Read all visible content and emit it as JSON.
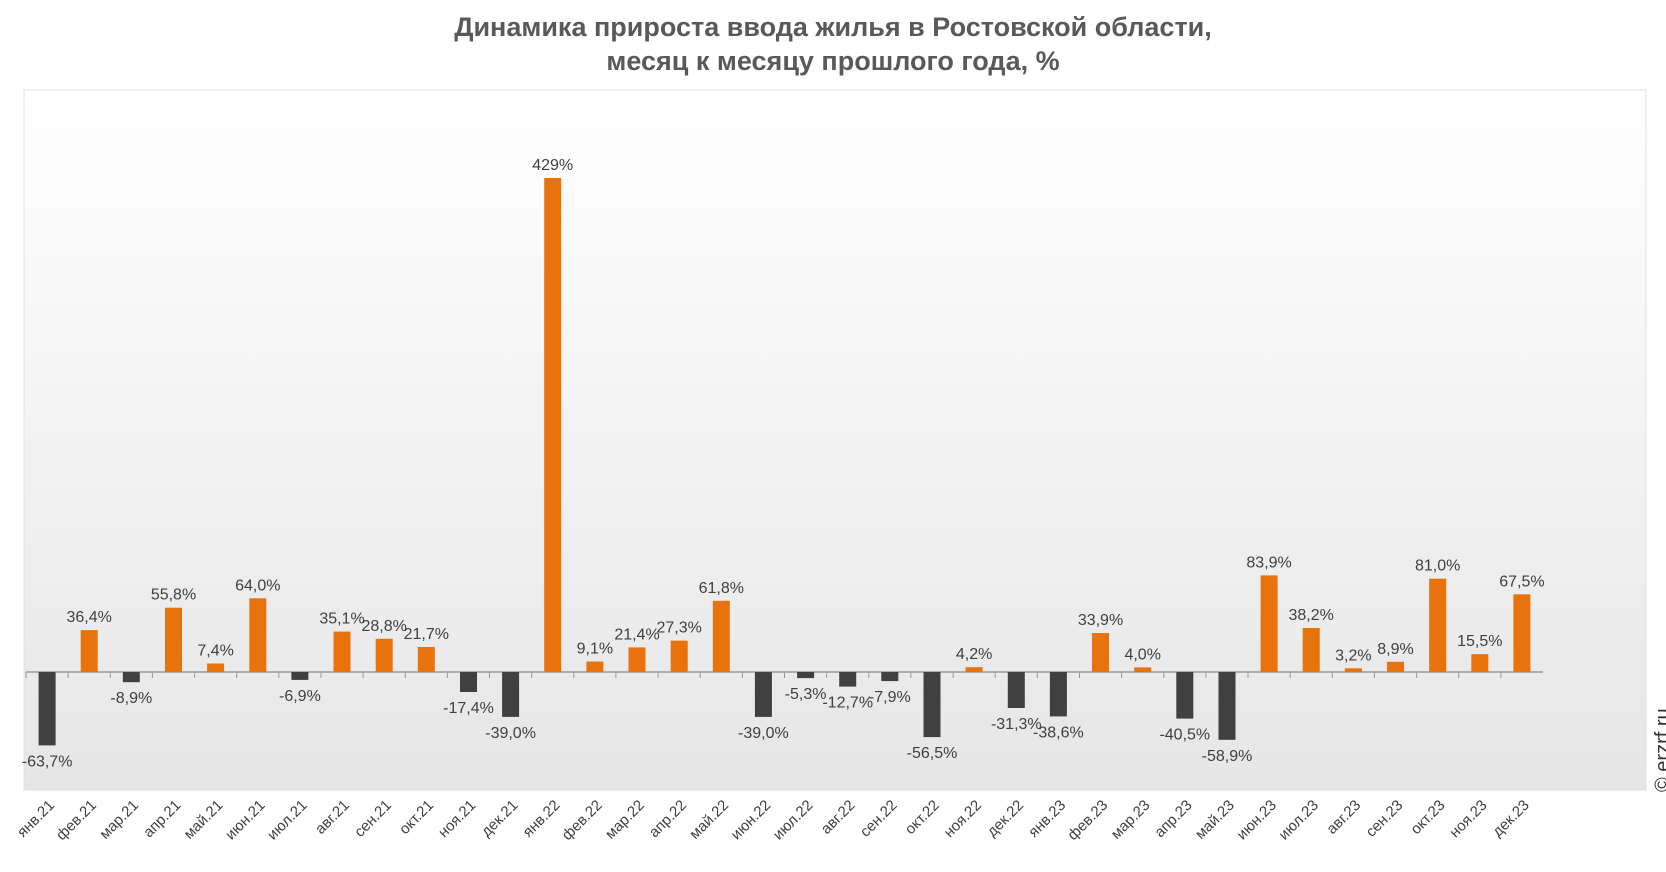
{
  "title_line1": "Динамика прироста ввода жилья в Ростовской области,",
  "title_line2": "месяц к месяцу прошлого года, %",
  "copyright": "© erzrf.ru",
  "colors": {
    "positive": "#E8720C",
    "negative": "#404040",
    "axis": "#9a9a9a"
  },
  "chart_data": {
    "type": "bar",
    "title": "Динамика прироста ввода жилья в Ростовской области, месяц к месяцу прошлого года, %",
    "categories": [
      "янв.21",
      "фев.21",
      "мар.21",
      "апр.21",
      "май.21",
      "июн.21",
      "июл.21",
      "авг.21",
      "сен.21",
      "окт.21",
      "ноя.21",
      "дек.21",
      "янв.22",
      "фев.22",
      "мар.22",
      "апр.22",
      "май.22",
      "июн.22",
      "июл.22",
      "авг.22",
      "сен.22",
      "окт.22",
      "ноя.22",
      "дек.22",
      "янв.23",
      "фев.23",
      "мар.23",
      "апр.23",
      "май.23",
      "июн.23",
      "июл.23",
      "авг.23",
      "сен.23",
      "окт.23",
      "ноя.23",
      "дек.23"
    ],
    "values": [
      -63.7,
      36.4,
      -8.9,
      55.8,
      7.4,
      64.0,
      -6.9,
      35.1,
      28.8,
      21.7,
      -17.4,
      -39.0,
      429,
      9.1,
      21.4,
      27.3,
      61.8,
      -39.0,
      -5.3,
      -12.7,
      -7.9,
      -56.5,
      4.2,
      -31.3,
      -38.6,
      33.9,
      4.0,
      -40.5,
      -58.9,
      83.9,
      38.2,
      3.2,
      8.9,
      81.0,
      15.5,
      67.5
    ],
    "data_labels": [
      "-63,7%",
      "36,4%",
      "-8,9%",
      "55,8%",
      "7,4%",
      "64,0%",
      "-6,9%",
      "35,1%",
      "28,8%",
      "21,7%",
      "-17,4%",
      "-39,0%",
      "429%",
      "9,1%",
      "21,4%",
      "27,3%",
      "61,8%",
      "-39,0%",
      "-5,3%",
      "-12,7%",
      "-7,9%",
      "-56,5%",
      "4,2%",
      "-31,3%",
      "-38,6%",
      "33,9%",
      "4,0%",
      "-40,5%",
      "-58,9%",
      "83,9%",
      "38,2%",
      "3,2%",
      "8,9%",
      "81,0%",
      "15,5%",
      "67,5%"
    ],
    "ylim": [
      -100,
      500
    ],
    "grid": false,
    "legend": "none"
  }
}
